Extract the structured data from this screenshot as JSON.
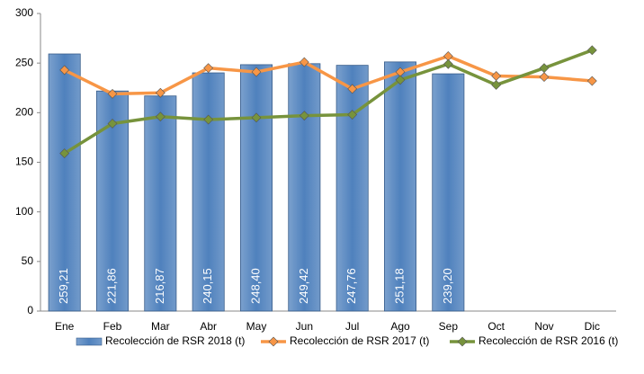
{
  "chart_data": {
    "type": "bar-line",
    "categories": [
      "Ene",
      "Feb",
      "Mar",
      "Abr",
      "May",
      "Jun",
      "Jul",
      "Ago",
      "Sep",
      "Oct",
      "Nov",
      "Dic"
    ],
    "series": [
      {
        "name": "Recolección de RSR 2018 (t)",
        "type": "bar",
        "color": "#4f81bd",
        "values": [
          259.21,
          221.86,
          216.87,
          240.15,
          248.4,
          249.42,
          247.76,
          251.18,
          239.2,
          null,
          null,
          null
        ],
        "value_labels": [
          "259,21",
          "221,86",
          "216,87",
          "240,15",
          "248,40",
          "249,42",
          "247,76",
          "251,18",
          "239,20",
          null,
          null,
          null
        ]
      },
      {
        "name": "Recolección de RSR 2017 (t)",
        "type": "line",
        "color": "#f79646",
        "values": [
          243,
          219,
          220,
          245,
          241,
          251,
          224,
          241,
          257,
          237,
          236,
          232
        ]
      },
      {
        "name": "Recolección de RSR 2016 (t)",
        "type": "line",
        "color": "#77933c",
        "values": [
          159,
          189,
          196,
          193,
          195,
          197,
          198,
          233,
          249,
          228,
          245,
          263
        ]
      }
    ],
    "ylim": [
      0,
      300
    ],
    "yticks": [
      0,
      50,
      100,
      150,
      200,
      250,
      300
    ],
    "grid": false,
    "legend": "bottom"
  }
}
